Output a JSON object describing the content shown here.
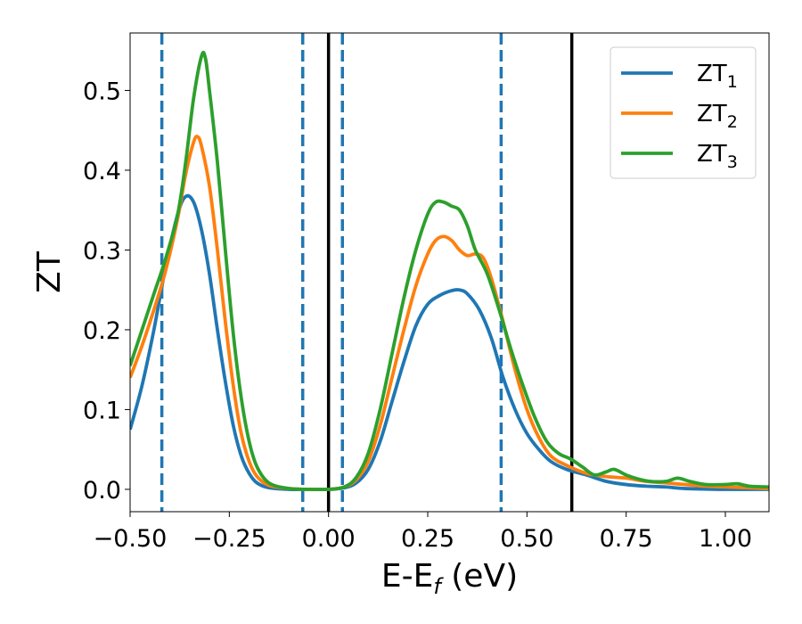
{
  "chart_data": {
    "type": "line",
    "title": "",
    "xlabel": {
      "main": "E-E",
      "sub": "f",
      "unit": " (eV)"
    },
    "ylabel": "ZT",
    "xlim": [
      -0.5,
      1.11
    ],
    "ylim": [
      -0.028,
      0.572
    ],
    "xticks": [
      -0.5,
      -0.25,
      0.0,
      0.25,
      0.5,
      0.75,
      1.0
    ],
    "xtick_labels": [
      "−0.50",
      "−0.25",
      "0.00",
      "0.25",
      "0.50",
      "0.75",
      "1.00"
    ],
    "yticks": [
      0.0,
      0.1,
      0.2,
      0.3,
      0.4,
      0.5
    ],
    "ytick_labels": [
      "0.0",
      "0.1",
      "0.2",
      "0.3",
      "0.4",
      "0.5"
    ],
    "grid": false,
    "legend_position": "top-right",
    "vlines_dashed": {
      "color": "#1f77b4",
      "x": [
        -0.42,
        -0.065,
        0.035,
        0.435
      ]
    },
    "vlines_solid": {
      "color": "#000000",
      "x": [
        0.0,
        0.613
      ]
    },
    "series": [
      {
        "name": "ZT",
        "subscript": "1",
        "color": "#1f77b4",
        "points": [
          [
            -0.5,
            0.075
          ],
          [
            -0.47,
            0.13
          ],
          [
            -0.44,
            0.2
          ],
          [
            -0.41,
            0.28
          ],
          [
            -0.38,
            0.345
          ],
          [
            -0.36,
            0.367
          ],
          [
            -0.34,
            0.36
          ],
          [
            -0.32,
            0.325
          ],
          [
            -0.3,
            0.27
          ],
          [
            -0.28,
            0.2
          ],
          [
            -0.26,
            0.135
          ],
          [
            -0.24,
            0.08
          ],
          [
            -0.22,
            0.042
          ],
          [
            -0.2,
            0.02
          ],
          [
            -0.18,
            0.008
          ],
          [
            -0.15,
            0.002
          ],
          [
            -0.1,
            0.0
          ],
          [
            -0.05,
            0.0
          ],
          [
            0.0,
            0.0
          ],
          [
            0.04,
            0.002
          ],
          [
            0.07,
            0.008
          ],
          [
            0.1,
            0.025
          ],
          [
            0.13,
            0.06
          ],
          [
            0.16,
            0.11
          ],
          [
            0.19,
            0.16
          ],
          [
            0.22,
            0.205
          ],
          [
            0.25,
            0.232
          ],
          [
            0.28,
            0.243
          ],
          [
            0.31,
            0.249
          ],
          [
            0.33,
            0.25
          ],
          [
            0.35,
            0.245
          ],
          [
            0.38,
            0.225
          ],
          [
            0.41,
            0.19
          ],
          [
            0.44,
            0.14
          ],
          [
            0.47,
            0.1
          ],
          [
            0.5,
            0.07
          ],
          [
            0.53,
            0.05
          ],
          [
            0.56,
            0.035
          ],
          [
            0.6,
            0.025
          ],
          [
            0.65,
            0.018
          ],
          [
            0.7,
            0.01
          ],
          [
            0.75,
            0.006
          ],
          [
            0.8,
            0.004
          ],
          [
            0.85,
            0.003
          ],
          [
            0.9,
            0.001
          ],
          [
            1.0,
            0.0
          ],
          [
            1.11,
            0.0
          ]
        ]
      },
      {
        "name": "ZT",
        "subscript": "2",
        "color": "#ff7f0e",
        "points": [
          [
            -0.5,
            0.14
          ],
          [
            -0.47,
            0.18
          ],
          [
            -0.44,
            0.225
          ],
          [
            -0.41,
            0.275
          ],
          [
            -0.38,
            0.34
          ],
          [
            -0.36,
            0.395
          ],
          [
            -0.34,
            0.435
          ],
          [
            -0.33,
            0.442
          ],
          [
            -0.32,
            0.43
          ],
          [
            -0.3,
            0.38
          ],
          [
            -0.28,
            0.3
          ],
          [
            -0.26,
            0.21
          ],
          [
            -0.24,
            0.13
          ],
          [
            -0.22,
            0.07
          ],
          [
            -0.2,
            0.035
          ],
          [
            -0.18,
            0.016
          ],
          [
            -0.15,
            0.005
          ],
          [
            -0.1,
            0.001
          ],
          [
            -0.05,
            0.0
          ],
          [
            0.0,
            0.0
          ],
          [
            0.04,
            0.003
          ],
          [
            0.07,
            0.012
          ],
          [
            0.1,
            0.035
          ],
          [
            0.13,
            0.08
          ],
          [
            0.16,
            0.14
          ],
          [
            0.19,
            0.2
          ],
          [
            0.22,
            0.255
          ],
          [
            0.25,
            0.295
          ],
          [
            0.27,
            0.312
          ],
          [
            0.29,
            0.317
          ],
          [
            0.31,
            0.312
          ],
          [
            0.33,
            0.3
          ],
          [
            0.35,
            0.293
          ],
          [
            0.37,
            0.295
          ],
          [
            0.39,
            0.29
          ],
          [
            0.41,
            0.265
          ],
          [
            0.44,
            0.21
          ],
          [
            0.47,
            0.15
          ],
          [
            0.5,
            0.1
          ],
          [
            0.53,
            0.065
          ],
          [
            0.56,
            0.042
          ],
          [
            0.6,
            0.03
          ],
          [
            0.65,
            0.02
          ],
          [
            0.7,
            0.016
          ],
          [
            0.75,
            0.014
          ],
          [
            0.8,
            0.01
          ],
          [
            0.85,
            0.008
          ],
          [
            0.9,
            0.006
          ],
          [
            0.95,
            0.004
          ],
          [
            1.0,
            0.003
          ],
          [
            1.11,
            0.001
          ]
        ]
      },
      {
        "name": "ZT",
        "subscript": "3",
        "color": "#2ca02c",
        "points": [
          [
            -0.5,
            0.155
          ],
          [
            -0.47,
            0.2
          ],
          [
            -0.44,
            0.245
          ],
          [
            -0.41,
            0.29
          ],
          [
            -0.38,
            0.345
          ],
          [
            -0.36,
            0.41
          ],
          [
            -0.34,
            0.49
          ],
          [
            -0.32,
            0.543
          ],
          [
            -0.31,
            0.54
          ],
          [
            -0.3,
            0.5
          ],
          [
            -0.28,
            0.41
          ],
          [
            -0.26,
            0.3
          ],
          [
            -0.24,
            0.195
          ],
          [
            -0.22,
            0.115
          ],
          [
            -0.2,
            0.06
          ],
          [
            -0.18,
            0.028
          ],
          [
            -0.15,
            0.008
          ],
          [
            -0.1,
            0.001
          ],
          [
            -0.05,
            0.0
          ],
          [
            0.0,
            0.0
          ],
          [
            0.04,
            0.003
          ],
          [
            0.07,
            0.015
          ],
          [
            0.1,
            0.045
          ],
          [
            0.13,
            0.1
          ],
          [
            0.16,
            0.17
          ],
          [
            0.19,
            0.24
          ],
          [
            0.22,
            0.3
          ],
          [
            0.25,
            0.345
          ],
          [
            0.27,
            0.36
          ],
          [
            0.29,
            0.36
          ],
          [
            0.31,
            0.355
          ],
          [
            0.33,
            0.35
          ],
          [
            0.35,
            0.33
          ],
          [
            0.37,
            0.3
          ],
          [
            0.4,
            0.27
          ],
          [
            0.43,
            0.225
          ],
          [
            0.46,
            0.175
          ],
          [
            0.49,
            0.13
          ],
          [
            0.52,
            0.09
          ],
          [
            0.55,
            0.06
          ],
          [
            0.58,
            0.045
          ],
          [
            0.61,
            0.038
          ],
          [
            0.64,
            0.028
          ],
          [
            0.67,
            0.018
          ],
          [
            0.7,
            0.022
          ],
          [
            0.72,
            0.025
          ],
          [
            0.75,
            0.018
          ],
          [
            0.78,
            0.013
          ],
          [
            0.81,
            0.01
          ],
          [
            0.85,
            0.01
          ],
          [
            0.88,
            0.014
          ],
          [
            0.91,
            0.01
          ],
          [
            0.95,
            0.006
          ],
          [
            1.0,
            0.006
          ],
          [
            1.03,
            0.007
          ],
          [
            1.06,
            0.004
          ],
          [
            1.11,
            0.003
          ]
        ]
      }
    ]
  }
}
